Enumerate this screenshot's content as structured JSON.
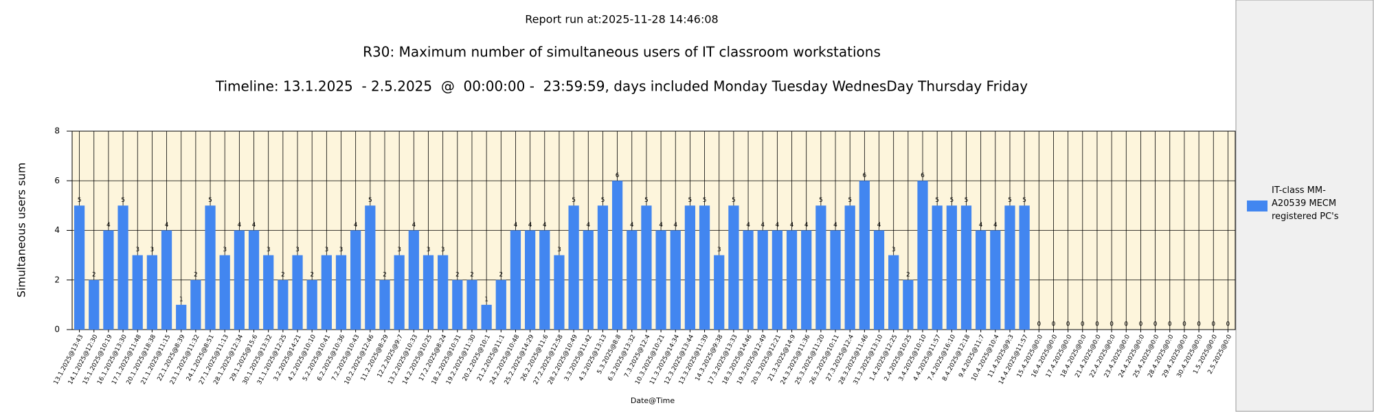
{
  "chart_data": {
    "type": "bar",
    "report_run": "Report run at:2025-11-28 14:46:08",
    "title": "R30: Maximum number of simultaneous users of IT classroom workstations",
    "subtitle": "Timeline: 13.1.2025  - 2.5.2025  @  00:00:00 -  23:59:59, days included Monday Tuesday WednesDay Thursday Friday",
    "x_label": "Date@Time",
    "y_label": "Simultaneous users sum",
    "categories": [
      "13.1.2025@13:43",
      "14.1.2025@12:30",
      "15.1.2025@10:19",
      "16.1.2025@13:30",
      "17.1.2025@11:48",
      "20.1.2025@18:38",
      "21.1.2025@11:15",
      "22.1.2025@8:39",
      "23.1.2025@11:32",
      "24.1.2025@8:51",
      "27.1.2025@11:13",
      "28.1.2025@12:34",
      "29.1.2025@15:6",
      "30.1.2025@13:32",
      "31.1.2025@12:25",
      "3.2.2025@14:21",
      "4.2.2025@10:10",
      "5.2.2025@10:41",
      "6.2.2025@10:36",
      "7.2.2025@10:43",
      "10.2.2025@12:46",
      "11.2.2025@8:29",
      "12.2.2025@9:7",
      "13.2.2025@10:33",
      "14.2.2025@10:25",
      "17.2.2025@8:24",
      "18.2.2025@10:31",
      "19.2.2025@11:30",
      "20.2.2025@10:1",
      "21.2.2025@11:1",
      "24.2.2025@10:48",
      "25.2.2025@14:29",
      "26.2.2025@11:6",
      "27.2.2025@12:58",
      "28.2.2025@10:49",
      "3.3.2025@11:42",
      "4.3.2025@13:13",
      "5.3.2025@8:8",
      "6.3.2025@13:32",
      "7.3.2025@12:4",
      "10.3.2025@10:21",
      "11.3.2025@14:34",
      "12.3.2025@13:44",
      "13.3.2025@11:39",
      "14.3.2025@9:38",
      "17.3.2025@13:33",
      "18.3.2025@14:46",
      "19.3.2025@12:49",
      "20.3.2025@12:21",
      "21.3.2025@14:9",
      "24.3.2025@11:36",
      "25.3.2025@11:20",
      "26.3.2025@10:11",
      "27.3.2025@12:4",
      "28.3.2025@11:46",
      "31.3.2025@13:10",
      "1.4.2025@12:25",
      "2.4.2025@10:25",
      "3.4.2025@10:10",
      "4.4.2025@11:57",
      "7.4.2025@16:10",
      "8.4.2025@12:18",
      "9.4.2025@11:7",
      "10.4.2025@10:4",
      "11.4.2025@9:3",
      "14.4.2025@11:57",
      "15.4.2025@0:0",
      "16.4.2025@0:0",
      "17.4.2025@0:0",
      "18.4.2025@0:0",
      "21.4.2025@0:0",
      "22.4.2025@0:0",
      "23.4.2025@0:0",
      "24.4.2025@0:0",
      "25.4.2025@0:0",
      "28.4.2025@0:0",
      "29.4.2025@0:0",
      "30.4.2025@0:0",
      "1.5.2025@0:0",
      "2.5.2025@0:0"
    ],
    "series": [
      {
        "name": "IT-class MM-A20539 MECM registered PC's",
        "color": "#4286f0",
        "values": [
          5,
          2,
          4,
          5,
          3,
          3,
          4,
          1,
          2,
          5,
          3,
          4,
          4,
          3,
          2,
          3,
          2,
          3,
          3,
          4,
          5,
          2,
          3,
          4,
          3,
          3,
          2,
          2,
          1,
          2,
          4,
          4,
          4,
          3,
          5,
          4,
          5,
          6,
          4,
          5,
          4,
          4,
          5,
          5,
          3,
          5,
          4,
          4,
          4,
          4,
          4,
          5,
          4,
          5,
          6,
          4,
          3,
          2,
          6,
          5,
          5,
          5,
          4,
          4,
          5,
          5,
          0,
          0,
          0,
          0,
          0,
          0,
          0,
          0,
          0,
          0,
          0,
          0,
          0,
          0
        ]
      }
    ],
    "ylim": [
      0,
      8
    ],
    "yticks": [
      0,
      2,
      4,
      6,
      8
    ],
    "grid": true,
    "legend": "right"
  }
}
